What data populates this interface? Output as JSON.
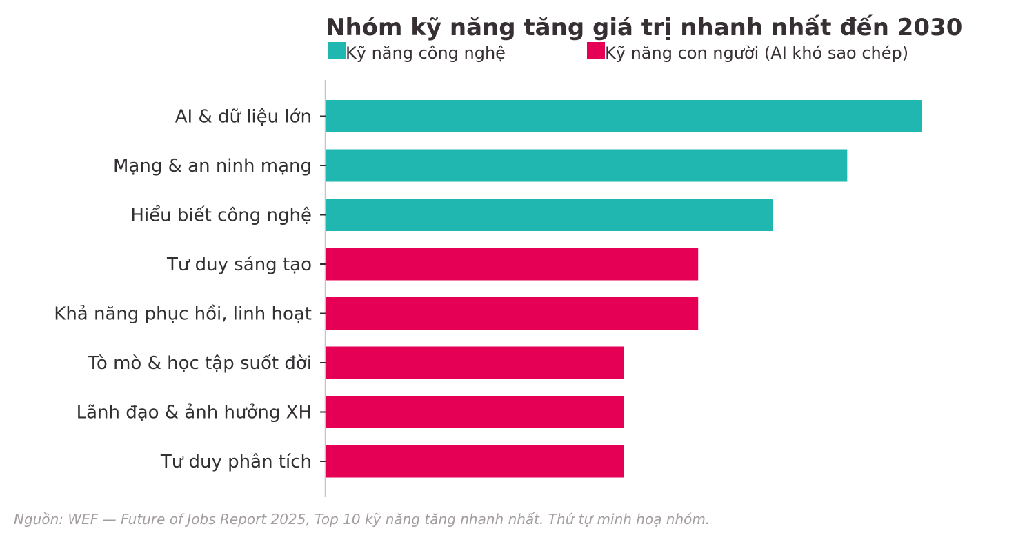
{
  "chart_data": {
    "type": "bar",
    "orientation": "horizontal",
    "title": "Nhóm kỹ năng tăng giá trị nhanh nhất đến 2030",
    "categories": [
      "AI & dữ liệu lớn",
      "Mạng & an ninh mạng",
      "Hiểu biết công nghệ",
      "Tư duy sáng tạo",
      "Khả năng phục hồi, linh hoạt",
      "Tò mò & học tập suốt đời",
      "Lãnh đạo & ảnh hưởng XH",
      "Tư duy phân tích"
    ],
    "values": [
      8,
      7,
      6,
      5,
      5,
      4,
      4,
      4
    ],
    "groups": [
      "tech",
      "tech",
      "tech",
      "human",
      "human",
      "human",
      "human",
      "human"
    ],
    "legend": [
      {
        "key": "tech",
        "label": "Kỹ năng công nghệ",
        "color": "#20b7b1"
      },
      {
        "key": "human",
        "label": "Kỹ năng con người (AI khó sao chép)",
        "color": "#e50056"
      }
    ],
    "legend_position": "top-left",
    "xlim": [
      0,
      8.7
    ],
    "grid": false,
    "xlabel": "",
    "ylabel": ""
  },
  "source_note": "Nguồn: WEF — Future of Jobs Report 2025, Top 10 kỹ năng tăng nhanh nhất. Thứ tự minh hoạ nhóm."
}
